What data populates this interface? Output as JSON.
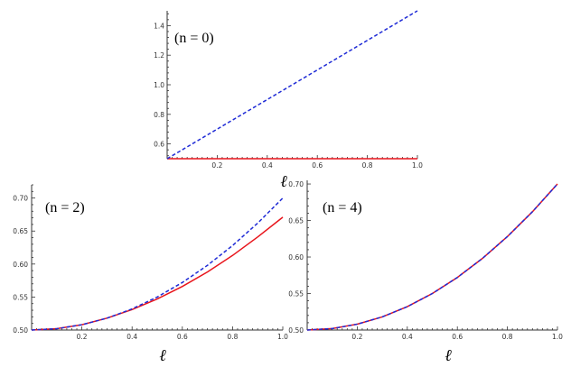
{
  "chart_data": [
    {
      "type": "line",
      "panel_label": "(n = 0)",
      "xlabel": "ℓ",
      "ylabel": "",
      "xlim": [
        0,
        1.0
      ],
      "ylim": [
        0.5,
        1.5
      ],
      "xticks": [
        "0.2",
        "0.4",
        "0.6",
        "0.8",
        "1.0"
      ],
      "yticks": [
        "0.6",
        "0.8",
        "1.0",
        "1.2",
        "1.4"
      ],
      "grid": false,
      "series": [
        {
          "style": "solid",
          "color": "#e8141b",
          "x": [
            0.0,
            0.2,
            0.4,
            0.6,
            0.8,
            1.0
          ],
          "y": [
            0.5,
            0.5,
            0.5,
            0.5,
            0.5,
            0.5
          ]
        },
        {
          "style": "dashed",
          "color": "#1f2bd6",
          "x": [
            0.0,
            0.2,
            0.4,
            0.6,
            0.8,
            1.0
          ],
          "y": [
            0.5,
            0.7,
            0.9,
            1.1,
            1.3,
            1.5
          ]
        }
      ]
    },
    {
      "type": "line",
      "panel_label": "(n = 2)",
      "xlabel": "ℓ",
      "ylabel": "",
      "xlim": [
        0,
        1.0
      ],
      "ylim": [
        0.5,
        0.72
      ],
      "xticks": [
        "0.2",
        "0.4",
        "0.6",
        "0.8",
        "1.0"
      ],
      "yticks": [
        "0.50",
        "0.55",
        "0.60",
        "0.65",
        "0.70"
      ],
      "grid": false,
      "series": [
        {
          "style": "solid",
          "color": "#e8141b",
          "x": [
            0.0,
            0.1,
            0.2,
            0.3,
            0.4,
            0.5,
            0.6,
            0.7,
            0.8,
            0.9,
            1.0
          ],
          "y": [
            0.5,
            0.502,
            0.508,
            0.518,
            0.531,
            0.547,
            0.566,
            0.588,
            0.613,
            0.641,
            0.671
          ]
        },
        {
          "style": "dashed",
          "color": "#1f2bd6",
          "x": [
            0.0,
            0.1,
            0.2,
            0.3,
            0.4,
            0.5,
            0.6,
            0.7,
            0.8,
            0.9,
            1.0
          ],
          "y": [
            0.5,
            0.502,
            0.508,
            0.518,
            0.532,
            0.55,
            0.572,
            0.598,
            0.628,
            0.662,
            0.7
          ]
        }
      ]
    },
    {
      "type": "line",
      "panel_label": "(n = 4)",
      "xlabel": "ℓ",
      "ylabel": "",
      "xlim": [
        0,
        1.0
      ],
      "ylim": [
        0.5,
        0.705
      ],
      "xticks": [
        "0.2",
        "0.4",
        "0.6",
        "0.8",
        "1.0"
      ],
      "yticks": [
        "0.50",
        "0.55",
        "0.60",
        "0.65",
        "0.70"
      ],
      "grid": false,
      "series": [
        {
          "style": "solid",
          "color": "#e8141b",
          "x": [
            0.0,
            0.1,
            0.2,
            0.3,
            0.4,
            0.5,
            0.6,
            0.7,
            0.8,
            0.9,
            1.0
          ],
          "y": [
            0.5,
            0.502,
            0.508,
            0.518,
            0.532,
            0.55,
            0.572,
            0.598,
            0.628,
            0.662,
            0.7
          ]
        },
        {
          "style": "dashed",
          "color": "#1f2bd6",
          "x": [
            0.0,
            0.1,
            0.2,
            0.3,
            0.4,
            0.5,
            0.6,
            0.7,
            0.8,
            0.9,
            1.0
          ],
          "y": [
            0.5,
            0.502,
            0.508,
            0.518,
            0.532,
            0.55,
            0.572,
            0.598,
            0.628,
            0.662,
            0.7
          ]
        }
      ]
    }
  ]
}
